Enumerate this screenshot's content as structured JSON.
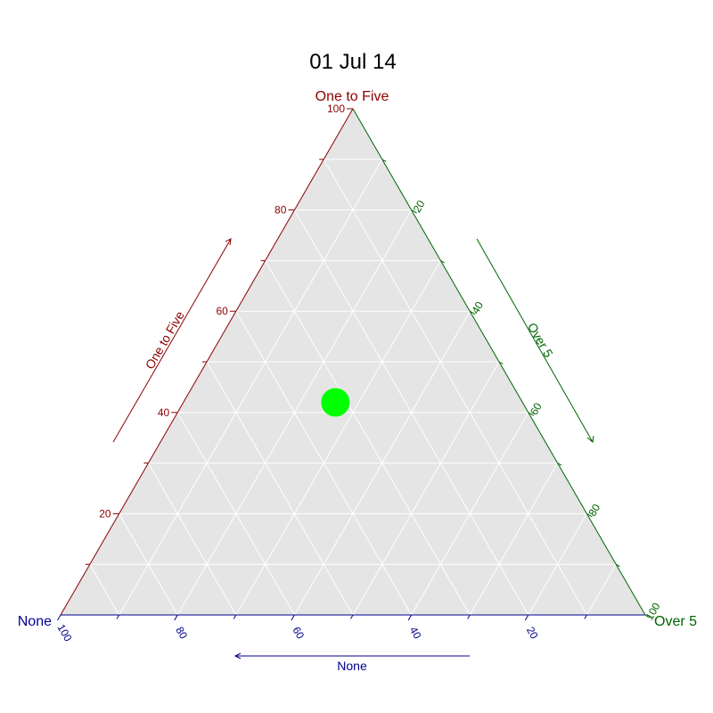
{
  "chart_data": {
    "type": "scatter",
    "subtype": "ternary",
    "title": "01 Jul 14",
    "axes": {
      "top": {
        "name": "One to Five",
        "color": "#8b0000"
      },
      "right": {
        "name": "Over 5",
        "color": "#006400"
      },
      "left": {
        "name": "None",
        "color": "#00008b"
      }
    },
    "corner_labels": {
      "top": "One to Five",
      "right": "Over 5",
      "left": "None"
    },
    "ticks": [
      20,
      40,
      60,
      80,
      100
    ],
    "range": [
      0,
      100
    ],
    "grid": true,
    "background": "#e5e5e5",
    "point_color": "#00ff00",
    "points": [
      {
        "one_to_five": 42,
        "over_5": 26,
        "none": 32
      }
    ]
  }
}
